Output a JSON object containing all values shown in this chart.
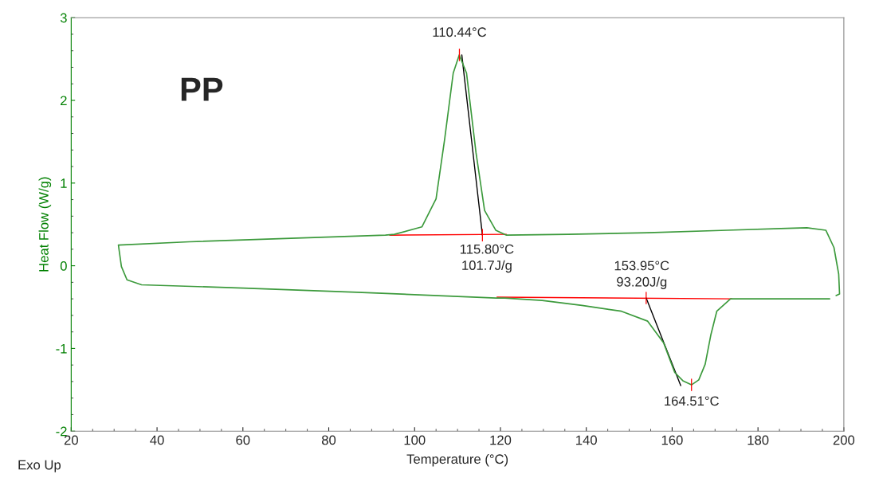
{
  "chart_data": {
    "type": "line",
    "xlabel": "Temperature (°C)",
    "ylabel": "Heat Flow (W/g)",
    "xlim": [
      20,
      200
    ],
    "ylim": [
      -2,
      3
    ],
    "xticks": [
      20,
      40,
      60,
      80,
      100,
      120,
      140,
      160,
      180,
      200
    ],
    "yticks": [
      -2,
      -1,
      0,
      1,
      2,
      3
    ],
    "grid": false,
    "marker": "none",
    "line_style": "solid",
    "series": [
      {
        "color": "#3c9a3c",
        "x": [
          196.7,
          173.6,
          170.4,
          169.0,
          167.7,
          166.2,
          164.5,
          162.5,
          160.6,
          158.0,
          154.3,
          148.2,
          139.0,
          129.7,
          121.0,
          119.0,
          86.6,
          60.1,
          36.4,
          33.0,
          31.7,
          31.0,
          47.5,
          93.2,
          95.3,
          101.7,
          105.0,
          107.0,
          109.0,
          110.4,
          112.1,
          114.3,
          116.3,
          118.9,
          121.4,
          135.8,
          154.3,
          172.8,
          185.3,
          191.4,
          195.8,
          197.7,
          198.8,
          199.0,
          198.2
        ],
        "values": [
          -0.4,
          -0.4,
          -0.55,
          -0.84,
          -1.19,
          -1.38,
          -1.44,
          -1.39,
          -1.29,
          -0.93,
          -0.67,
          -0.55,
          -0.48,
          -0.42,
          -0.39,
          -0.39,
          -0.32,
          -0.27,
          -0.23,
          -0.17,
          -0.01,
          0.25,
          0.29,
          0.37,
          0.38,
          0.47,
          0.81,
          1.53,
          2.33,
          2.55,
          2.33,
          1.37,
          0.67,
          0.43,
          0.37,
          0.38,
          0.4,
          0.43,
          0.45,
          0.46,
          0.43,
          0.22,
          -0.1,
          -0.34,
          -0.36
        ]
      },
      {
        "color": "#ff0000",
        "x": [
          94.2,
          121.4
        ],
        "values": [
          0.37,
          0.38
        ]
      },
      {
        "color": "#ff0000",
        "x": [
          119.2,
          173.9
        ],
        "values": [
          -0.38,
          -0.4
        ]
      },
      {
        "color": "#000000",
        "x": [
          111.0,
          115.8
        ],
        "values": [
          2.55,
          0.37
        ]
      },
      {
        "color": "#000000",
        "x": [
          153.95,
          162.0
        ],
        "values": [
          -0.39,
          -1.45
        ]
      }
    ],
    "annotations": [
      {
        "text": "110.44°C",
        "x": 110.44,
        "y": 2.55
      },
      {
        "text": "115.80°C\n101.7J/g",
        "x": 115.8,
        "y": 0.37
      },
      {
        "text": "153.95°C\n93.20J/g",
        "x": 153.95,
        "y": -0.39
      },
      {
        "text": "164.51°C",
        "x": 164.51,
        "y": -1.44
      },
      "PP",
      "Exo Up"
    ]
  }
}
